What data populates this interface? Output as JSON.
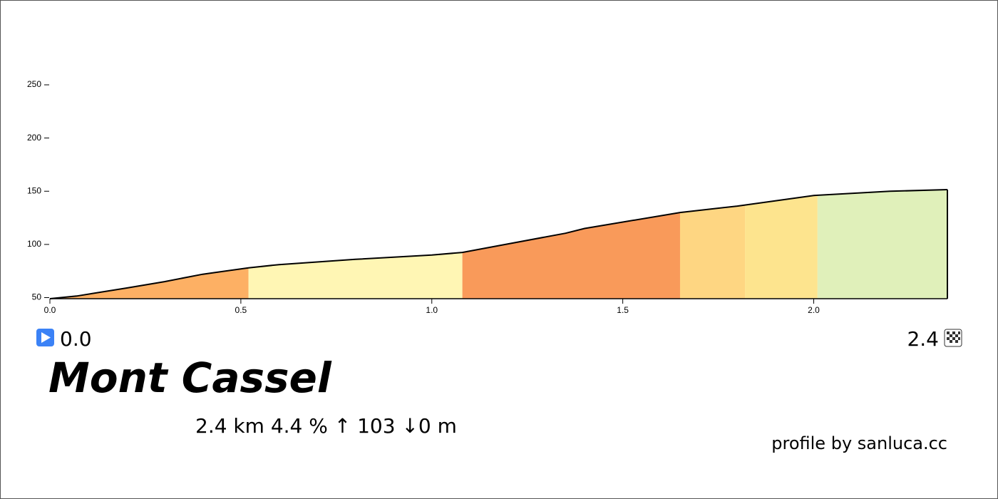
{
  "chart_data": {
    "type": "area",
    "title": "Mont Cassel",
    "start_label": "0.0",
    "end_label": "2.4",
    "stats": "2.4 km 4.4 %  ↑ 103 ↓0 m",
    "credit": "profile by sanluca.cc",
    "x": [
      0,
      0.07,
      0.2,
      0.3,
      0.4,
      0.52,
      0.6,
      0.8,
      1.0,
      1.08,
      1.2,
      1.35,
      1.4,
      1.65,
      1.8,
      2.0,
      2.2,
      2.35
    ],
    "values": [
      49,
      51.5,
      59,
      65,
      72,
      78,
      81,
      86,
      90,
      92.5,
      100.5,
      110.5,
      115,
      130,
      136,
      146,
      150,
      151.5
    ],
    "segments": [
      {
        "start": 0,
        "end": 0.52,
        "color": "#fdb064"
      },
      {
        "start": 0.52,
        "end": 1.08,
        "color": "#fff6b4"
      },
      {
        "start": 1.08,
        "end": 1.65,
        "color": "#f99a5a"
      },
      {
        "start": 1.65,
        "end": 1.82,
        "color": "#fed682"
      },
      {
        "start": 1.82,
        "end": 2.01,
        "color": "#fde48e"
      },
      {
        "start": 2.01,
        "end": 2.35,
        "color": "#e0f0ba"
      }
    ],
    "xlim": [
      0,
      2.35
    ],
    "ylim": [
      49,
      250
    ],
    "xticks": [
      {
        "value": 0,
        "label": "0.0"
      },
      0.5,
      {
        "value": 1,
        "label": "1.0"
      },
      1.5,
      {
        "value": 2,
        "label": "2.0"
      }
    ],
    "yticks": [
      50,
      100,
      150,
      200,
      250
    ],
    "line_color": "#000000"
  }
}
